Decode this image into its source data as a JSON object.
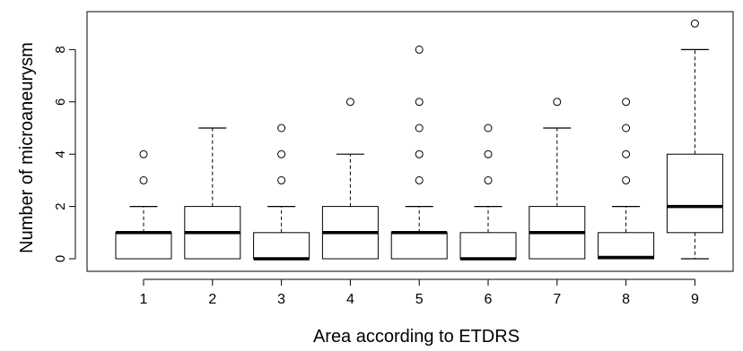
{
  "chart_data": {
    "type": "boxplot",
    "xlabel": "Area according to ETDRS",
    "ylabel": "Number of microaneurysm",
    "ylim": [
      -0.4,
      9.4
    ],
    "y_ticks": [
      0,
      2,
      4,
      6,
      8
    ],
    "categories": [
      "1",
      "2",
      "3",
      "4",
      "5",
      "6",
      "7",
      "8",
      "9"
    ],
    "grid": false,
    "boxes": [
      {
        "category": "1",
        "whisker_low": 0,
        "q1": 0,
        "median": 1,
        "q3": 1,
        "whisker_high": 2,
        "outliers": [
          3,
          4
        ]
      },
      {
        "category": "2",
        "whisker_low": 0,
        "q1": 0,
        "median": 1,
        "q3": 2,
        "whisker_high": 5,
        "outliers": []
      },
      {
        "category": "3",
        "whisker_low": 0,
        "q1": 0,
        "median": 0,
        "q3": 1,
        "whisker_high": 2,
        "outliers": [
          3,
          4,
          5
        ]
      },
      {
        "category": "4",
        "whisker_low": 0,
        "q1": 0,
        "median": 1,
        "q3": 2,
        "whisker_high": 4,
        "outliers": [
          6
        ]
      },
      {
        "category": "5",
        "whisker_low": 0,
        "q1": 0,
        "median": 1,
        "q3": 1,
        "whisker_high": 2,
        "outliers": [
          3,
          4,
          5,
          6,
          8
        ]
      },
      {
        "category": "6",
        "whisker_low": 0,
        "q1": 0,
        "median": 0,
        "q3": 1,
        "whisker_high": 2,
        "outliers": [
          3,
          4,
          5
        ]
      },
      {
        "category": "7",
        "whisker_low": 0,
        "q1": 0,
        "median": 1,
        "q3": 2,
        "whisker_high": 5,
        "outliers": [
          6
        ]
      },
      {
        "category": "8",
        "whisker_low": 0,
        "q1": 0,
        "median": 0.05,
        "q3": 1,
        "whisker_high": 2,
        "outliers": [
          3,
          4,
          5,
          6
        ]
      },
      {
        "category": "9",
        "whisker_low": 0,
        "q1": 1,
        "median": 2,
        "q3": 4,
        "whisker_high": 8,
        "outliers": [
          9
        ]
      }
    ]
  }
}
